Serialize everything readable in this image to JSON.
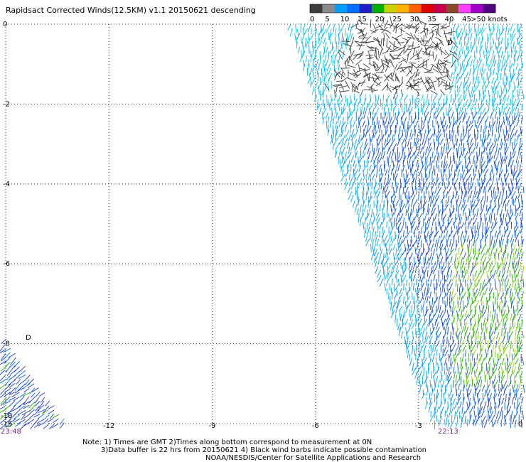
{
  "title": "Rapidsact Corrected Winds(12.5KM) v1.1 20150621 descending",
  "legend": {
    "labels": [
      "0",
      "5",
      "10",
      "15",
      "20",
      "25",
      "30",
      "35",
      "40",
      "45",
      ">50 knots"
    ],
    "colors": [
      "#3c3c3c",
      "#8a8a8a",
      "#00a0ff",
      "#0070ff",
      "#2020c8",
      "#00b000",
      "#c8d200",
      "#ffb000",
      "#ff6000",
      "#e00000",
      "#c80050",
      "#8a4a2a",
      "#ff40ff",
      "#a000c8",
      "#500080"
    ]
  },
  "chart_data": {
    "type": "scatter",
    "subtype": "wind-barbs",
    "x_ticks": [
      "-15",
      "-12",
      "-9",
      "-6",
      "-3",
      "0"
    ],
    "y_ticks": [
      "0",
      "-2",
      "-4",
      "-6",
      "-8",
      "-10"
    ],
    "xlim": [
      -15,
      0
    ],
    "ylim": [
      -10,
      0
    ],
    "grid": true,
    "times": {
      "left": "23:48",
      "right": "22:13"
    },
    "swath_right": {
      "edge_top_lon": -6.7,
      "edge_bottom_lon": -2.5,
      "top_calm_region": {
        "lon": [
          -6.7,
          -2.0
        ],
        "lat": [
          -2.0,
          0
        ]
      },
      "strong_region": {
        "lon": [
          -2.0,
          0
        ],
        "lat": [
          -9.0,
          -5.5
        ]
      }
    },
    "swath_left": {
      "edge_top_lat": -7.9,
      "edge_right_lon": -13.2
    },
    "marker": "D"
  },
  "notes": [
    "Note: 1) Times are GMT 2)Times along bottom correspond to measurement at 0N",
    "3)Data buffer is 22 hrs from 20150621 4) Black wind barbs indicate possible contamination",
    "NOAA/NESDIS/Center for Satellite Applications and Research"
  ]
}
